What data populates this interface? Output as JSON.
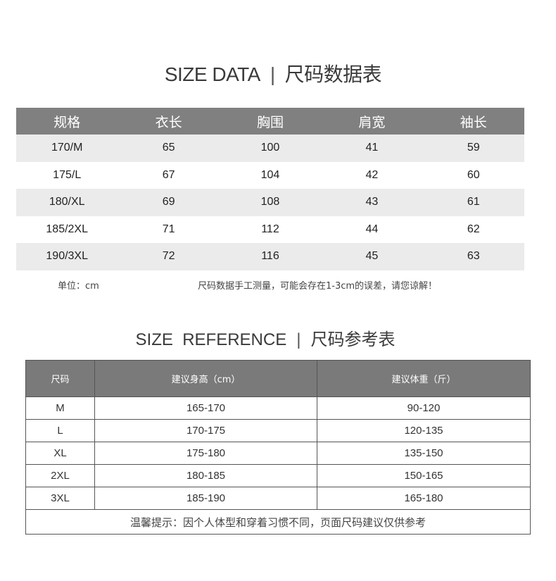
{
  "size_data": {
    "title_en": "SIZE DATA",
    "separator": "|",
    "title_cn": "尺码数据表",
    "headers": [
      "规格",
      "衣长",
      "胸围",
      "肩宽",
      "袖长"
    ],
    "rows": [
      [
        "170/M",
        "65",
        "100",
        "41",
        "59"
      ],
      [
        "175/L",
        "67",
        "104",
        "42",
        "60"
      ],
      [
        "180/XL",
        "69",
        "108",
        "43",
        "61"
      ],
      [
        "185/2XL",
        "71",
        "112",
        "44",
        "62"
      ],
      [
        "190/3XL",
        "72",
        "116",
        "45",
        "63"
      ]
    ],
    "unit_note": "单位：cm",
    "measure_note": "尺码数据手工测量，可能会存在1-3cm的误差，请您谅解！"
  },
  "size_reference": {
    "title_en": "SIZE  REFERENCE",
    "separator": "|",
    "title_cn": "尺码参考表",
    "headers": [
      "尺码",
      "建议身高（cm）",
      "建议体重（斤）"
    ],
    "rows": [
      [
        "M",
        "165-170",
        "90-120"
      ],
      [
        "L",
        "170-175",
        "120-135"
      ],
      [
        "XL",
        "175-180",
        "135-150"
      ],
      [
        "2XL",
        "180-185",
        "150-165"
      ],
      [
        "3XL",
        "185-190",
        "165-180"
      ]
    ],
    "footer": "温馨提示：因个人体型和穿着习惯不同，页面尺码建议仅供参考"
  },
  "colors": {
    "header_bg": "#808080",
    "stripe_bg": "#ebebeb",
    "border": "#555555"
  }
}
